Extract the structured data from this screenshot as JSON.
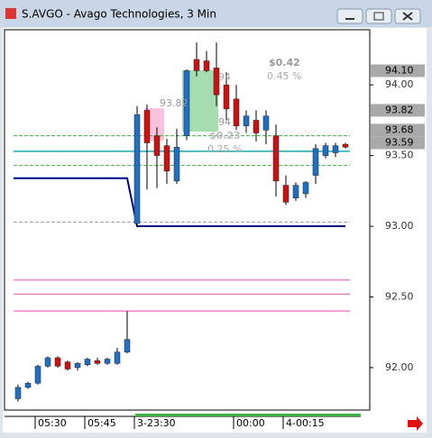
{
  "window": {
    "title": "S.AVGO - Avago Technologies, 3 Min"
  },
  "chart_data": {
    "type": "candlestick",
    "categories": [
      null,
      null,
      "05:30",
      null,
      null,
      null,
      null,
      "05:45",
      null,
      null,
      null,
      null,
      "3-23:30",
      null,
      null,
      null,
      null,
      null,
      null,
      null,
      null,
      null,
      "00:00",
      null,
      null,
      null,
      null,
      "4-00:15",
      null,
      null,
      null,
      null,
      null,
      null
    ],
    "open": [
      91.78,
      91.86,
      91.89,
      92.01,
      92.07,
      92.04,
      92.0,
      92.02,
      92.05,
      92.03,
      92.03,
      92.11,
      93.02,
      93.82,
      93.64,
      93.57,
      93.32,
      93.64,
      94.18,
      94.17,
      94.12,
      94.0,
      93.9,
      93.71,
      93.75,
      93.68,
      93.64,
      93.29,
      93.2,
      93.23,
      93.36,
      93.5,
      93.52,
      93.58
    ],
    "high": [
      91.88,
      91.9,
      92.02,
      92.08,
      92.08,
      92.05,
      92.04,
      92.07,
      92.07,
      92.07,
      92.14,
      92.4,
      93.85,
      93.86,
      93.7,
      93.62,
      93.69,
      94.11,
      94.3,
      94.24,
      94.3,
      94.09,
      94.0,
      93.82,
      93.82,
      93.82,
      93.72,
      93.36,
      93.31,
      93.32,
      93.58,
      93.59,
      93.59,
      93.59
    ],
    "low": [
      91.76,
      91.85,
      91.88,
      92.0,
      92.0,
      91.98,
      91.98,
      92.01,
      92.02,
      92.02,
      92.02,
      92.1,
      93.0,
      93.26,
      93.27,
      93.3,
      93.3,
      93.61,
      94.06,
      94.09,
      93.85,
      93.75,
      93.68,
      93.66,
      93.6,
      93.58,
      93.21,
      93.15,
      93.18,
      93.2,
      93.3,
      93.48,
      93.49,
      93.55
    ],
    "close": [
      91.86,
      91.89,
      92.01,
      92.07,
      92.01,
      91.99,
      92.03,
      92.06,
      92.03,
      92.06,
      92.11,
      92.2,
      93.79,
      93.59,
      93.5,
      93.39,
      93.56,
      94.1,
      94.1,
      94.1,
      93.93,
      93.83,
      93.71,
      93.78,
      93.66,
      93.78,
      93.32,
      93.17,
      93.29,
      93.31,
      93.55,
      93.57,
      93.57,
      93.56
    ],
    "up_color": "#1f6fc5",
    "down_color": "#cc1111",
    "series": [
      {
        "color": "#00008b",
        "values": [
          93.34,
          93.34,
          93.34,
          93.34,
          93.34,
          93.34,
          93.34,
          93.34,
          93.34,
          93.34,
          93.34,
          93.34,
          93.0,
          93.0,
          93.0,
          93.0,
          93.0,
          93.0,
          93.0,
          93.0,
          93.0,
          93.0,
          93.0,
          93.0,
          93.0,
          93.0,
          93.0,
          93.0,
          93.0,
          93.0,
          93.0,
          93.0,
          93.0,
          93.0
        ]
      }
    ],
    "levels": [
      {
        "value": 93.53,
        "color": "#1aa7b8",
        "dash": false
      },
      {
        "value": 93.64,
        "color": "#3cb043",
        "dash": true
      },
      {
        "value": 93.43,
        "color": "#3cb043",
        "dash": true
      },
      {
        "value": 93.03,
        "color": "#999999",
        "dash": true
      },
      {
        "value": 92.62,
        "color": "#f080c8",
        "dash": false
      },
      {
        "value": 92.52,
        "color": "#f080c8",
        "dash": false
      },
      {
        "value": 92.4,
        "color": "#f080c8",
        "dash": false
      }
    ],
    "ylim": [
      91.7,
      94.39
    ],
    "yticks": [
      {
        "value": 92,
        "label": "92.00"
      },
      {
        "value": 92.5,
        "label": "92.50"
      },
      {
        "value": 93,
        "label": "93.00"
      },
      {
        "value": 93.5,
        "label": "93.50"
      },
      {
        "value": 94,
        "label": "94.00"
      }
    ],
    "price_flags": [
      {
        "value": 94.1,
        "label": "94.10"
      },
      {
        "value": 93.82,
        "label": "93.82"
      },
      {
        "value": 93.68,
        "label": "93.68"
      },
      {
        "value": 93.59,
        "label": "93.59"
      }
    ],
    "annotations": [
      "$0.42",
      "0.45 %",
      "$0.23",
      "0.25 %",
      "93.82",
      "94",
      "94"
    ]
  }
}
